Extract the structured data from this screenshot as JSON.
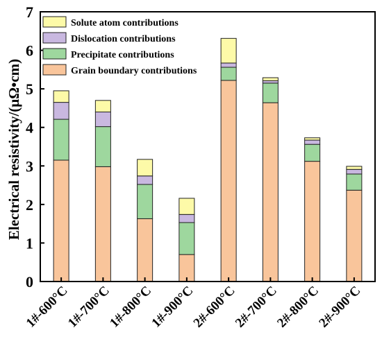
{
  "chart_data": {
    "type": "bar",
    "stacked": true,
    "title": "",
    "xlabel": "",
    "ylabel": "Electrical resistivity/(μΩ•cm)",
    "ylim": [
      0,
      7
    ],
    "yticks": [
      0,
      1,
      2,
      3,
      4,
      5,
      6,
      7
    ],
    "grid": false,
    "legend_position": "top-left",
    "categories": [
      "1#-600°C",
      "1#-700°C",
      "1#-800°C",
      "1#-900°C",
      "2#-600°C",
      "2#-700°C",
      "2#-800°C",
      "2#-900°C"
    ],
    "series": [
      {
        "name": "Grain boundary contributions",
        "color": "#f9c59b",
        "values": [
          3.15,
          2.98,
          1.63,
          0.7,
          5.22,
          4.64,
          3.12,
          2.37
        ]
      },
      {
        "name": "Precipitate contributions",
        "color": "#9ed79e",
        "values": [
          1.06,
          1.04,
          0.89,
          0.83,
          0.34,
          0.51,
          0.44,
          0.42
        ]
      },
      {
        "name": "Dislocation contributions",
        "color": "#c9b8e0",
        "values": [
          0.44,
          0.38,
          0.22,
          0.21,
          0.11,
          0.06,
          0.11,
          0.12
        ]
      },
      {
        "name": "Solute atom contributions",
        "color": "#fdfaa8",
        "values": [
          0.3,
          0.3,
          0.43,
          0.42,
          0.64,
          0.08,
          0.06,
          0.08
        ]
      }
    ],
    "legend_order": [
      "Solute atom contributions",
      "Dislocation contributions",
      "Precipitate contributions",
      "Grain boundary contributions"
    ]
  }
}
